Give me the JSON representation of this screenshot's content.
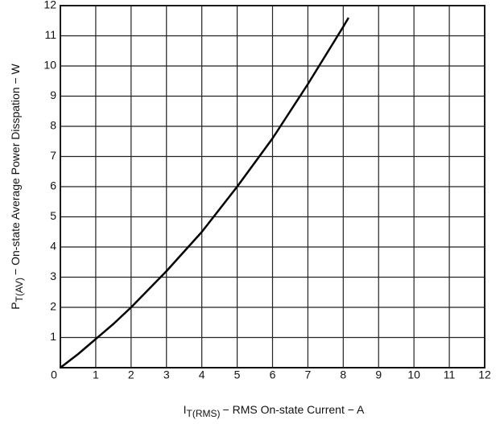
{
  "chart_data": {
    "type": "line",
    "x": [
      0,
      0.5,
      1,
      1.5,
      2,
      2.5,
      3,
      3.5,
      4,
      4.5,
      5,
      5.5,
      6,
      6.5,
      7,
      7.5,
      8,
      8.15
    ],
    "series": [
      {
        "color": "#000000",
        "values": [
          0,
          0.45,
          0.95,
          1.45,
          2.0,
          2.6,
          3.2,
          3.85,
          4.5,
          5.25,
          6.0,
          6.8,
          7.6,
          8.5,
          9.4,
          10.35,
          11.3,
          11.6
        ]
      }
    ],
    "xlim": [
      0,
      12
    ],
    "ylim": [
      0,
      12
    ],
    "xticks": [
      0,
      1,
      2,
      3,
      4,
      5,
      6,
      7,
      8,
      9,
      10,
      11,
      12
    ],
    "yticks": [
      1,
      2,
      3,
      4,
      5,
      6,
      7,
      8,
      9,
      10,
      11,
      12
    ],
    "grid": true,
    "xlabel": {
      "main": "I",
      "sub": "T(RMS)",
      "rest": "− RMS On-state Current − A"
    },
    "ylabel": {
      "main": "P",
      "sub": "T(AV)",
      "rest": "− On-state Average Power Disspation − W"
    }
  }
}
